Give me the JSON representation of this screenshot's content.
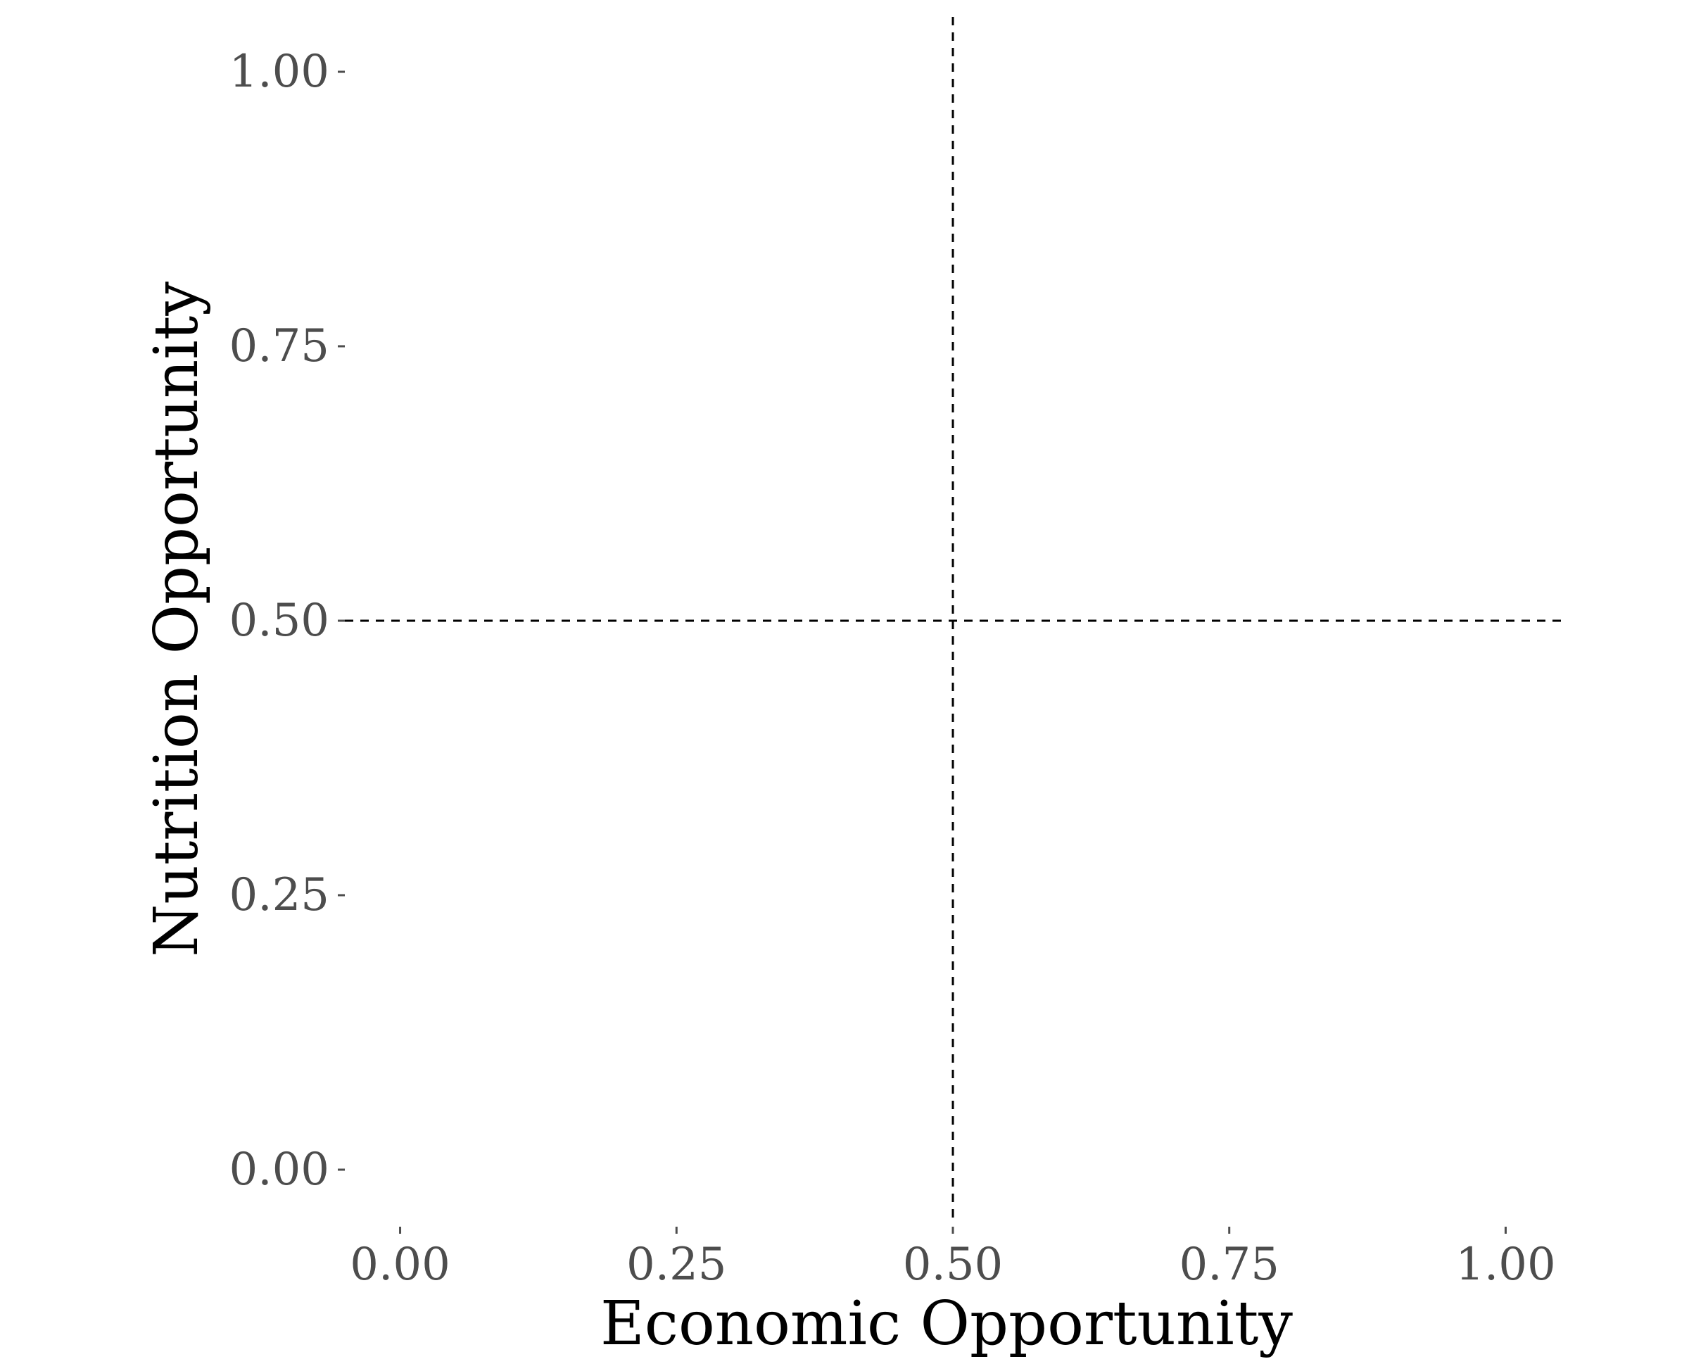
{
  "chart_data": {
    "type": "scatter",
    "title": "",
    "xlabel": "Economic Opportunity",
    "ylabel": "Nutrition Opportunity",
    "xlim": [
      -0.05,
      1.05
    ],
    "ylim": [
      -0.05,
      1.05
    ],
    "x_ticks": [
      0,
      0.25,
      0.5,
      0.75,
      1
    ],
    "y_ticks": [
      0,
      0.25,
      0.5,
      0.75,
      1
    ],
    "x_tick_labels": [
      "0.00",
      "0.25",
      "0.50",
      "0.75",
      "1.00"
    ],
    "y_tick_labels": [
      "0.00",
      "0.25",
      "0.50",
      "0.75",
      "1.00"
    ],
    "series": [],
    "reference_lines": [
      {
        "orientation": "vertical",
        "value": 0.5,
        "style": "dashed"
      },
      {
        "orientation": "horizontal",
        "value": 0.5,
        "style": "dashed"
      }
    ],
    "grid": false,
    "legend": "none"
  }
}
